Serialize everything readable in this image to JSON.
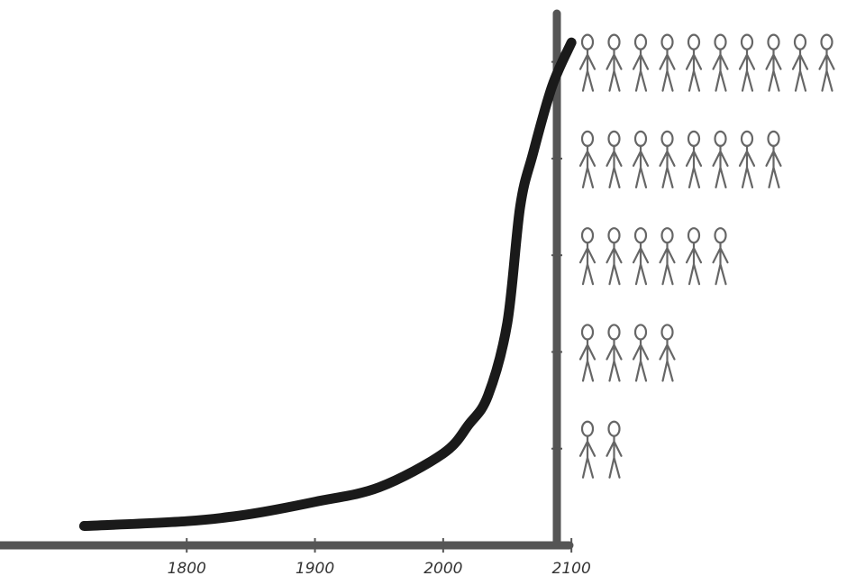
{
  "chart_data": {
    "type": "line",
    "x": [
      1720,
      1800,
      1850,
      1900,
      1950,
      2000,
      2020,
      2035,
      2050,
      2060,
      2070,
      2085,
      2100
    ],
    "values": [
      0.4,
      0.5,
      0.65,
      0.9,
      1.2,
      1.9,
      2.5,
      3.1,
      4.6,
      7,
      8.1,
      9.5,
      10.4
    ],
    "color": "#1a1a1a",
    "xlim": [
      1660,
      2102
    ],
    "xticks": [
      1800,
      1900,
      2000,
      2100
    ],
    "ylim": [
      0,
      11
    ],
    "yticks": [
      2,
      4,
      6,
      8,
      10
    ],
    "grid": false
  }
}
